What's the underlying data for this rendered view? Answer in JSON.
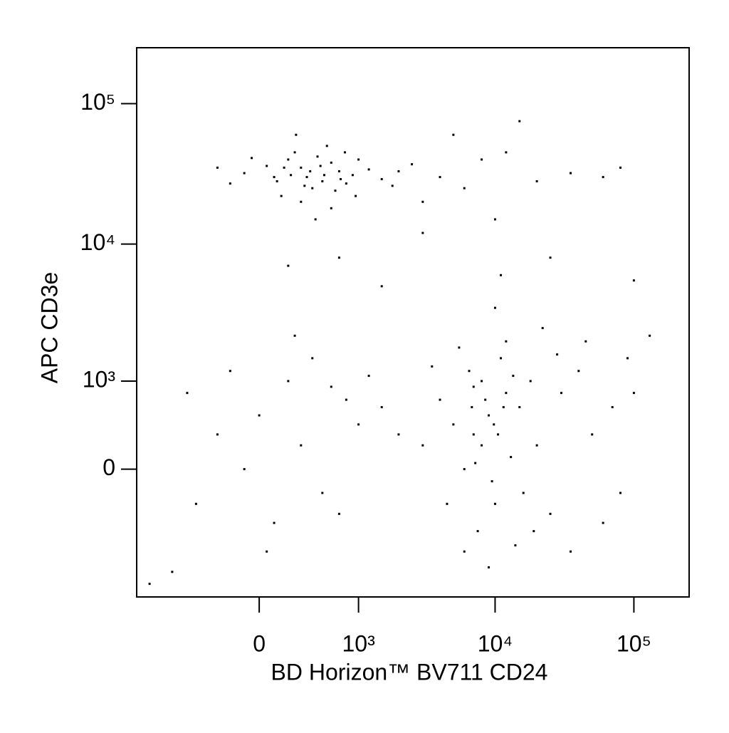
{
  "chart_data": {
    "type": "scatter",
    "x_label": "BD Horizon™ BV711 CD24",
    "y_label": "APC CD3e",
    "xscale": "biexponential",
    "yscale": "biexponential",
    "color": "#000000",
    "xlim": [
      -1500,
      250000
    ],
    "ylim": [
      -2000,
      250000
    ],
    "xticks": [
      0,
      {
        "value": 1000,
        "label": "10³"
      },
      {
        "value": 10000,
        "label": "10⁴"
      },
      {
        "value": 100000,
        "label": "10⁵"
      }
    ],
    "yticks": [
      0,
      {
        "value": 1000,
        "label": "10³"
      },
      {
        "value": 10000,
        "label": "10⁴"
      },
      {
        "value": 100000,
        "label": "10⁵"
      }
    ],
    "x": [
      100,
      300,
      500,
      200,
      -100,
      400,
      700,
      250,
      600,
      150,
      350,
      800,
      50,
      450,
      900,
      1200,
      1500,
      -200,
      300,
      550,
      650,
      1000,
      2000,
      120,
      380,
      480,
      220,
      720,
      -50,
      600,
      1800,
      2500,
      260,
      430,
      -300,
      950,
      330,
      520,
      170,
      780,
      4000,
      6000,
      8000,
      12000,
      20000,
      35000,
      60000,
      80000,
      5000,
      15000,
      3000,
      10000,
      25000,
      3000,
      700,
      200,
      1500,
      11000,
      100000,
      9000,
      7000,
      12000,
      6000,
      10000,
      15000,
      8000,
      5000,
      20000,
      11000,
      7500,
      13000,
      9500,
      30000,
      4000,
      25000,
      6500,
      18000,
      10500,
      8500,
      50000,
      40000,
      70000,
      90000,
      3000,
      14000,
      9000,
      6000,
      12000,
      22000,
      5500,
      16000,
      8000,
      11500,
      7000,
      60000,
      35000,
      45000,
      100000,
      130000,
      9800,
      7200,
      13500,
      10000,
      28000,
      19000,
      4500,
      80000,
      3500,
      6800,
      0,
      200,
      -300,
      500,
      800,
      100,
      400,
      -500,
      1000,
      300,
      -200,
      600,
      1500,
      -100,
      700,
      250,
      -600,
      1200,
      50,
      -800,
      2000,
      -1200
    ],
    "y": [
      30000,
      35000,
      28000,
      40000,
      32000,
      25000,
      33000,
      45000,
      38000,
      22000,
      30000,
      27000,
      36000,
      42000,
      31000,
      34000,
      29000,
      27000,
      20000,
      50000,
      24000,
      40000,
      33000,
      28000,
      33000,
      36000,
      31000,
      29000,
      41000,
      18000,
      26000,
      37000,
      60000,
      15000,
      35000,
      22000,
      26000,
      31000,
      35000,
      45000,
      30000,
      25000,
      40000,
      45000,
      28000,
      32000,
      30000,
      35000,
      60000,
      75000,
      20000,
      15000,
      8000,
      12000,
      8000,
      7000,
      5000,
      6000,
      5500,
      500,
      300,
      800,
      0,
      -300,
      600,
      1000,
      400,
      200,
      1500,
      -600,
      100,
      -100,
      800,
      700,
      -400,
      1200,
      1000,
      300,
      700,
      300,
      1200,
      600,
      1500,
      200,
      -800,
      -1200,
      -900,
      2000,
      2500,
      1800,
      -200,
      200,
      600,
      900,
      -500,
      -900,
      2000,
      800,
      2200,
      400,
      50,
      1100,
      3500,
      1600,
      -600,
      -300,
      -200,
      1300,
      600,
      500,
      1000,
      300,
      -200,
      700,
      -500,
      1500,
      -300,
      400,
      200,
      1200,
      900,
      600,
      0,
      -400,
      2200,
      800,
      1100,
      -900,
      -1300,
      300,
      -1600
    ]
  }
}
